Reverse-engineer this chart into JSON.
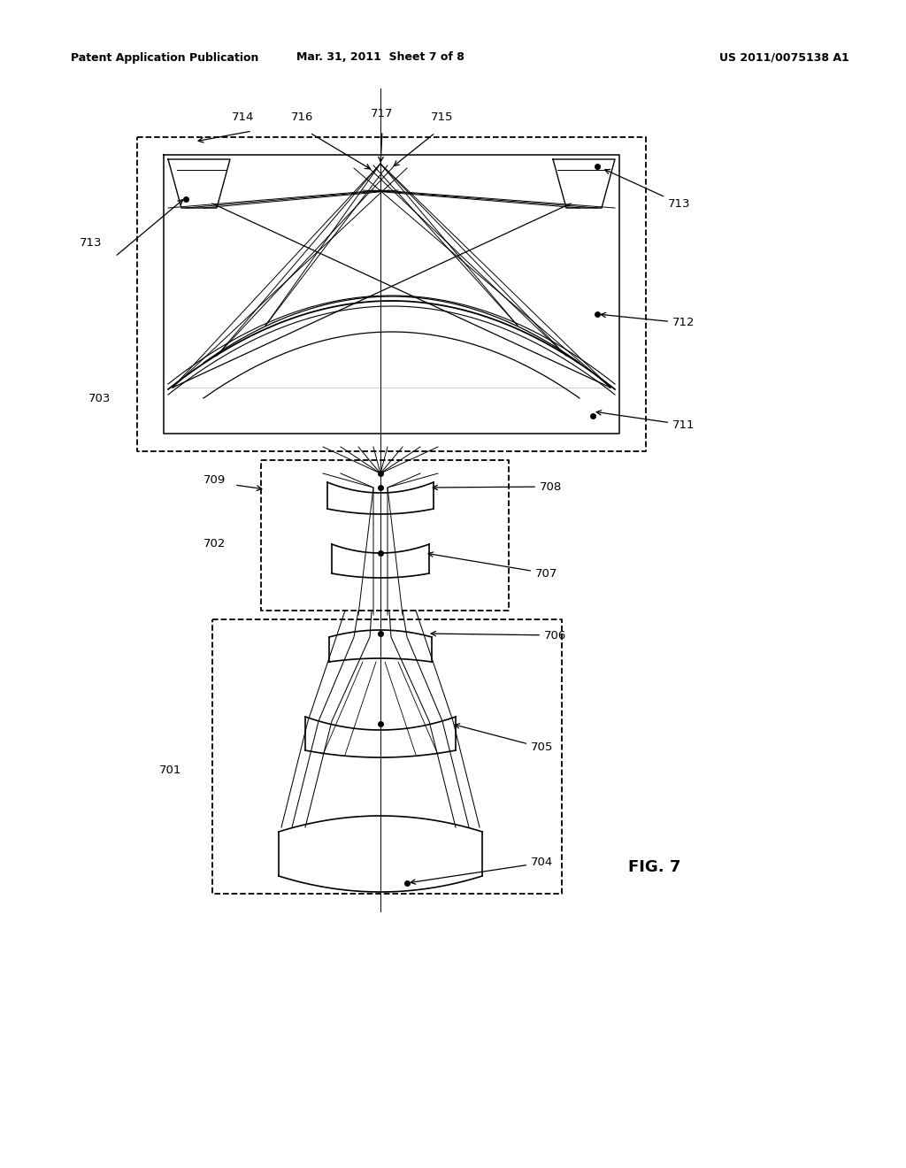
{
  "header_left": "Patent Application Publication",
  "header_center": "Mar. 31, 2011  Sheet 7 of 8",
  "header_right": "US 2011/0075138 A1",
  "figure_label": "FIG. 7",
  "bg_color": "#ffffff",
  "lc": "#000000"
}
